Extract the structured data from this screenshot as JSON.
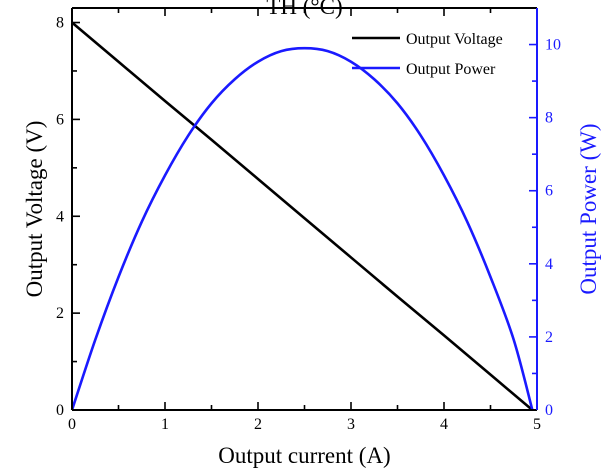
{
  "chart_data": {
    "type": "line",
    "title": "TH (°C)",
    "xlabel": "Output current (A)",
    "ylabel_left": "Output Voltage (V)",
    "ylabel_right": "Output Power (W)",
    "xlim": [
      0,
      5
    ],
    "ylim_left": [
      0,
      8.3
    ],
    "ylim_right": [
      0,
      11.0
    ],
    "x_ticks": [
      "0",
      "1",
      "2",
      "3",
      "4",
      "5"
    ],
    "y_left_ticks": [
      "0",
      "2",
      "4",
      "6",
      "8"
    ],
    "y_right_ticks": [
      "0",
      "2",
      "4",
      "6",
      "8",
      "10"
    ],
    "grid": false,
    "legend_position": "top-right",
    "colors": {
      "voltage": "#000000",
      "power": "#1a1aff",
      "right_axis": "#1a1aff"
    },
    "series": [
      {
        "name": "Output Voltage",
        "axis": "left",
        "x": [
          0,
          0.5,
          1,
          1.5,
          2,
          2.5,
          3,
          3.5,
          4,
          4.5,
          4.95
        ],
        "y": [
          8.0,
          7.19,
          6.38,
          5.58,
          4.77,
          3.96,
          3.15,
          2.34,
          1.54,
          0.73,
          0.0
        ]
      },
      {
        "name": "Output Power",
        "axis": "right",
        "x": [
          0,
          0.25,
          0.5,
          0.75,
          1,
          1.25,
          1.5,
          1.75,
          2,
          2.25,
          2.5,
          2.75,
          3,
          3.25,
          3.5,
          3.75,
          4,
          4.25,
          4.5,
          4.75,
          4.95
        ],
        "y": [
          0,
          1.92,
          3.64,
          5.15,
          6.42,
          7.51,
          8.39,
          9.05,
          9.53,
          9.82,
          9.9,
          9.82,
          9.53,
          9.05,
          8.39,
          7.51,
          6.42,
          5.15,
          3.64,
          1.92,
          0
        ]
      }
    ]
  }
}
